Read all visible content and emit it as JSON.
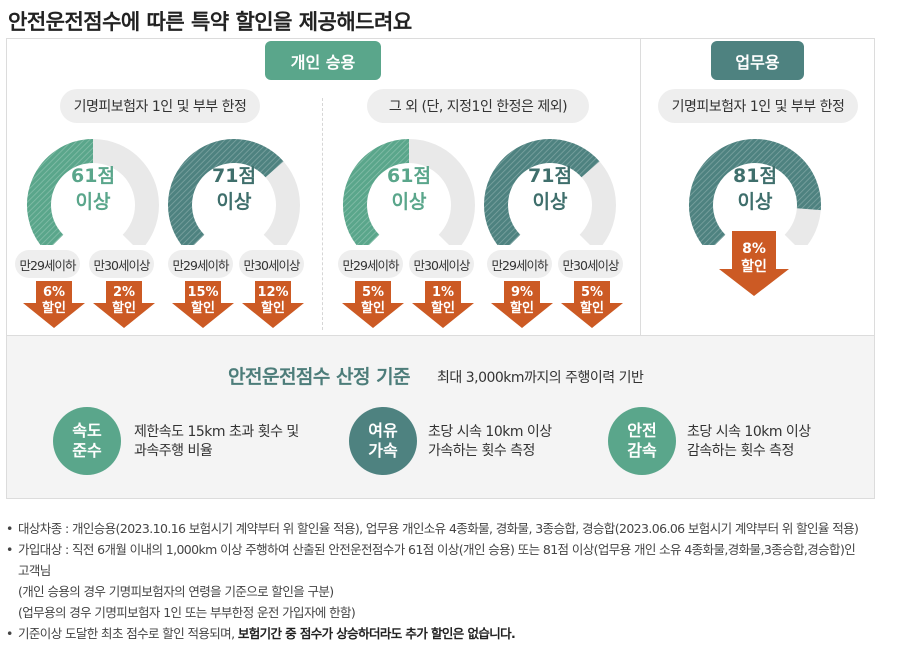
{
  "title": "안전운전점수에 따른 특약 할인을 제공해드려요",
  "tabs": {
    "personal": "개인 승용",
    "business": "업무용"
  },
  "colors": {
    "green": "#5aa68b",
    "teal": "#4e8280",
    "orange": "#cc5a24",
    "track": "#e9e9e9"
  },
  "personal": {
    "groups": [
      {
        "label": "기명피보험자 1인 및 부부 한정",
        "gauges": [
          {
            "score": "61점",
            "suffix": "이상",
            "color": "green",
            "fill_fraction": 0.5,
            "items": [
              {
                "age": "만29세이하",
                "pct": "6%",
                "unit": "할인"
              },
              {
                "age": "만30세이상",
                "pct": "2%",
                "unit": "할인"
              }
            ]
          },
          {
            "score": "71점",
            "suffix": "이상",
            "color": "teal",
            "fill_fraction": 0.68,
            "items": [
              {
                "age": "만29세이하",
                "pct": "15%",
                "unit": "할인"
              },
              {
                "age": "만30세이상",
                "pct": "12%",
                "unit": "할인"
              }
            ]
          }
        ]
      },
      {
        "label": "그 외 (단, 지정1인 한정은 제외)",
        "gauges": [
          {
            "score": "61점",
            "suffix": "이상",
            "color": "green",
            "fill_fraction": 0.5,
            "items": [
              {
                "age": "만29세이하",
                "pct": "5%",
                "unit": "할인"
              },
              {
                "age": "만30세이상",
                "pct": "1%",
                "unit": "할인"
              }
            ]
          },
          {
            "score": "71점",
            "suffix": "이상",
            "color": "teal",
            "fill_fraction": 0.68,
            "items": [
              {
                "age": "만29세이하",
                "pct": "9%",
                "unit": "할인"
              },
              {
                "age": "만30세이상",
                "pct": "5%",
                "unit": "할인"
              }
            ]
          }
        ]
      }
    ]
  },
  "business": {
    "label": "기명피보험자 1인 및 부부 한정",
    "gauge": {
      "score": "81점",
      "suffix": "이상",
      "color": "teal",
      "fill_fraction": 0.85,
      "pct": "8%",
      "unit": "할인"
    }
  },
  "criteria": {
    "title": "안전운전점수 산정 기준",
    "subtitle": "최대 3,000km까지의 주행이력 기반",
    "items": [
      {
        "badge_line1": "속도",
        "badge_line2": "준수",
        "color": "green",
        "desc_line1": "제한속도 15km 초과 횟수 및",
        "desc_line2": "과속주행 비율"
      },
      {
        "badge_line1": "여유",
        "badge_line2": "가속",
        "color": "teal",
        "desc_line1": "초당 시속 10km 이상",
        "desc_line2": "가속하는 횟수 측정"
      },
      {
        "badge_line1": "안전",
        "badge_line2": "감속",
        "color": "green",
        "desc_line1": "초당 시속 10km 이상",
        "desc_line2": "감속하는 횟수 측정"
      }
    ]
  },
  "notes": {
    "n1": "대상차종 : 개인승용(2023.10.16 보험시기 계약부터 위 할인율 적용), 업무용 개인소유 4종화물, 경화물, 3종승합, 경승합(2023.06.06 보험시기 계약부터 위 할인율 적용)",
    "n2a": "가입대상 : 직전 6개월 이내의 1,000km 이상 주행하여 산출된 안전운전점수가 61점 이상(개인 승용) 또는 81점 이상(업무용 개인 소유 4종화물,경화물,3종승합,경승합)인",
    "n2b": "고객님",
    "n2c": "(개인 승용의 경우 기명피보험자의 연령을 기준으로 할인을 구분)",
    "n2d": "(업무용의 경우 기명피보험자 1인 또는 부부한정 운전 가입자에 한함)",
    "n3a": "기준이상 도달한 최초 점수로 할인 적용되며, ",
    "n3b": "보험기간 중 점수가 상승하더라도 추가 할인은 없습니다."
  }
}
